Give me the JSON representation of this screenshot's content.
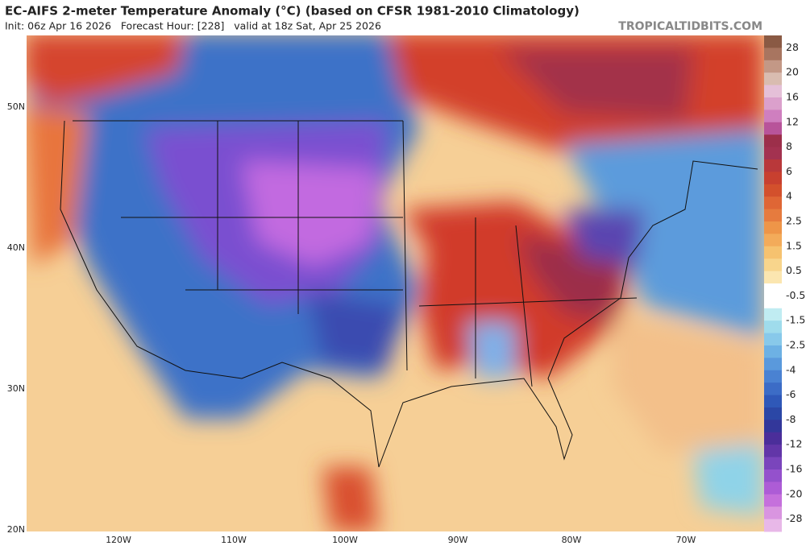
{
  "header": {
    "title": "EC-AIFS 2-meter Temperature Anomaly (°C) (based on CFSR 1981-2010 Climatology)",
    "subtitle": "Init: 06z Apr 16 2026   Forecast Hour: [228]   valid at 18z Sat, Apr 25 2026",
    "site": "TROPICALTIDBITS.COM"
  },
  "map": {
    "lat_labels": [
      "50N",
      "40N",
      "30N",
      "20N"
    ],
    "lon_labels": [
      "120W",
      "110W",
      "100W",
      "90W",
      "80W",
      "70W"
    ]
  },
  "colorbar": {
    "labels": [
      "28",
      "20",
      "16",
      "12",
      "8",
      "6",
      "4",
      "2.5",
      "1.5",
      "0.5",
      "-0.5",
      "-1.5",
      "-2.5",
      "-4",
      "-6",
      "-8",
      "-12",
      "-16",
      "-20",
      "-28"
    ]
  }
}
